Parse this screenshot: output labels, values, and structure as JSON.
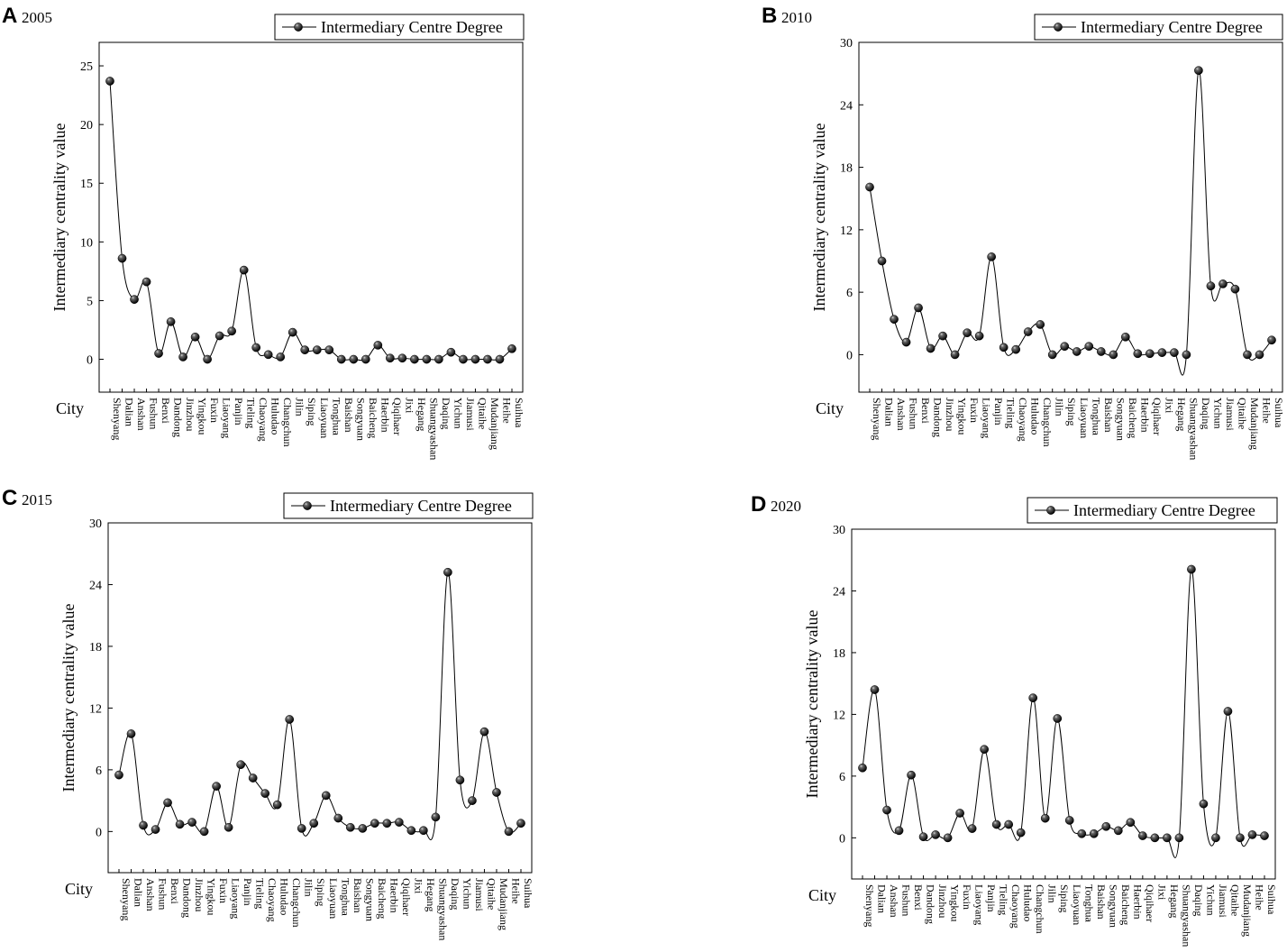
{
  "chart_data": [
    {
      "type": "line",
      "panel_label": "A",
      "title": "2005",
      "xlabel": "City",
      "ylabel": "Intermediary centrality value",
      "legend": "Intermediary Centre Degree",
      "ylim": [
        -2.8,
        27
      ],
      "yticks": [
        "0",
        "5",
        "10",
        "15",
        "20",
        "25"
      ],
      "categories": [
        "Shenyang",
        "Dalian",
        "Anshan",
        "Fushun",
        "Benxi",
        "Dandong",
        "Jinzhou",
        "Yingkou",
        "Fuxin",
        "Liaoyang",
        "Panjin",
        "Tieling",
        "Chaoyang",
        "Huludao",
        "Changchun",
        "Jilin",
        "Siping",
        "Liaoyuan",
        "Tonghua",
        "Baishan",
        "Songyuan",
        "Baicheng",
        "Haerbin",
        "Qiqihaer",
        "Jixi",
        "Hegang",
        "Shuangyashan",
        "Daqing",
        "Yichun",
        "Jiamusi",
        "Qitaihe",
        "Mudanjiang",
        "Heihe",
        "Suihua"
      ],
      "series": [
        {
          "name": "Intermediary Centre Degree",
          "values": [
            23.7,
            8.6,
            5.1,
            6.6,
            0.5,
            3.2,
            0.2,
            1.9,
            0.0,
            2.0,
            2.4,
            7.6,
            1.0,
            0.4,
            0.2,
            2.3,
            0.8,
            0.8,
            0.8,
            0.0,
            0.0,
            0.0,
            1.2,
            0.1,
            0.1,
            0.0,
            0.0,
            0.0,
            0.6,
            0.0,
            0.0,
            0.0,
            0.0,
            0.9
          ]
        }
      ]
    },
    {
      "type": "line",
      "panel_label": "B",
      "title": "2010",
      "xlabel": "City",
      "ylabel": "Intermediary centrality value",
      "legend": "Intermediary Centre Degree",
      "ylim": [
        -3.6,
        30
      ],
      "yticks": [
        "0",
        "6",
        "12",
        "18",
        "24",
        "30"
      ],
      "categories": [
        "Shenyang",
        "Dalian",
        "Anshan",
        "Fushun",
        "Benxi",
        "Dandong",
        "Jinzhou",
        "Yingkou",
        "Fuxin",
        "Liaoyang",
        "Panjin",
        "Tieling",
        "Chaoyang",
        "Huludao",
        "Changchun",
        "Jilin",
        "Siping",
        "Liaoyuan",
        "Tonghua",
        "Baishan",
        "Songyuan",
        "Baicheng",
        "Haerbin",
        "Qiqihaer",
        "Jixi",
        "Hegang",
        "Shuangyashan",
        "Daqing",
        "Yichun",
        "Jiamusi",
        "Qitaihe",
        "Mudanjiang",
        "Heihe",
        "Suihua"
      ],
      "series": [
        {
          "name": "Intermediary Centre Degree",
          "values": [
            16.1,
            9.0,
            3.4,
            1.2,
            4.5,
            0.6,
            1.8,
            0.0,
            2.1,
            1.8,
            9.4,
            0.7,
            0.5,
            2.2,
            2.9,
            0.0,
            0.8,
            0.3,
            0.8,
            0.3,
            0.0,
            1.7,
            0.1,
            0.1,
            0.2,
            0.2,
            0.0,
            27.3,
            6.6,
            6.8,
            6.3,
            0.0,
            0.0,
            1.4
          ]
        }
      ]
    },
    {
      "type": "line",
      "panel_label": "C",
      "title": "2015",
      "xlabel": "City",
      "ylabel": "Intermediary centrality value",
      "legend": "Intermediary Centre Degree",
      "ylim": [
        -4,
        30
      ],
      "yticks": [
        "0",
        "6",
        "12",
        "18",
        "24",
        "30"
      ],
      "categories": [
        "Shenyang",
        "Dalian",
        "Anshan",
        "Fushun",
        "Benxi",
        "Dandong",
        "Jinzhou",
        "Yingkou",
        "Fuxin",
        "Liaoyang",
        "Panjin",
        "Tieling",
        "Chaoyang",
        "Huludao",
        "Changchun",
        "Jilin",
        "Siping",
        "Liaoyuan",
        "Tonghua",
        "Baishan",
        "Songyuan",
        "Baicheng",
        "Haerbin",
        "Qiqihaer",
        "Jixi",
        "Hegang",
        "Shuangyashan",
        "Daqing",
        "Yichun",
        "Jiamusi",
        "Qitaihe",
        "Mudanjiang",
        "Heihe",
        "Suihua"
      ],
      "series": [
        {
          "name": "Intermediary Centre Degree",
          "values": [
            5.5,
            9.5,
            0.6,
            0.2,
            2.8,
            0.7,
            0.9,
            0.0,
            4.4,
            0.4,
            6.5,
            5.2,
            3.7,
            2.6,
            10.9,
            0.3,
            0.8,
            3.5,
            1.3,
            0.4,
            0.3,
            0.8,
            0.8,
            0.9,
            0.1,
            0.1,
            1.4,
            25.2,
            5.0,
            3.0,
            9.7,
            3.8,
            0.0,
            0.8
          ]
        }
      ]
    },
    {
      "type": "line",
      "panel_label": "D",
      "title": "2020",
      "xlabel": "City",
      "ylabel": "Intermediary centrality value",
      "legend": "Intermediary Centre Degree",
      "ylim": [
        -4,
        30
      ],
      "yticks": [
        "0",
        "6",
        "12",
        "18",
        "24",
        "30"
      ],
      "categories": [
        "Shenyang",
        "Dalian",
        "Anshan",
        "Fushun",
        "Benxi",
        "Dandong",
        "Jinzhou",
        "Yingkou",
        "Fuxin",
        "Liaoyang",
        "Panjin",
        "Tieling",
        "Chaoyang",
        "Huludao",
        "Changchun",
        "Jilin",
        "Siping",
        "Liaoyuan",
        "Tonghua",
        "Baishan",
        "Songyuan",
        "Baicheng",
        "Haerbin",
        "Qiqihaer",
        "Jixi",
        "Hegang",
        "Shuangyashan",
        "Daqing",
        "Yichun",
        "Jiamusi",
        "Qitaihe",
        "Mudanjiang",
        "Heihe",
        "Suihua"
      ],
      "series": [
        {
          "name": "Intermediary Centre Degree",
          "values": [
            6.8,
            14.4,
            2.7,
            0.7,
            6.1,
            0.1,
            0.3,
            0.0,
            2.4,
            0.9,
            8.6,
            1.3,
            1.3,
            0.5,
            13.6,
            1.9,
            11.6,
            1.7,
            0.4,
            0.4,
            1.1,
            0.7,
            1.5,
            0.2,
            0.0,
            0.0,
            0.0,
            26.1,
            3.3,
            0.0,
            12.3,
            0.0,
            0.3,
            0.2
          ]
        }
      ]
    }
  ]
}
